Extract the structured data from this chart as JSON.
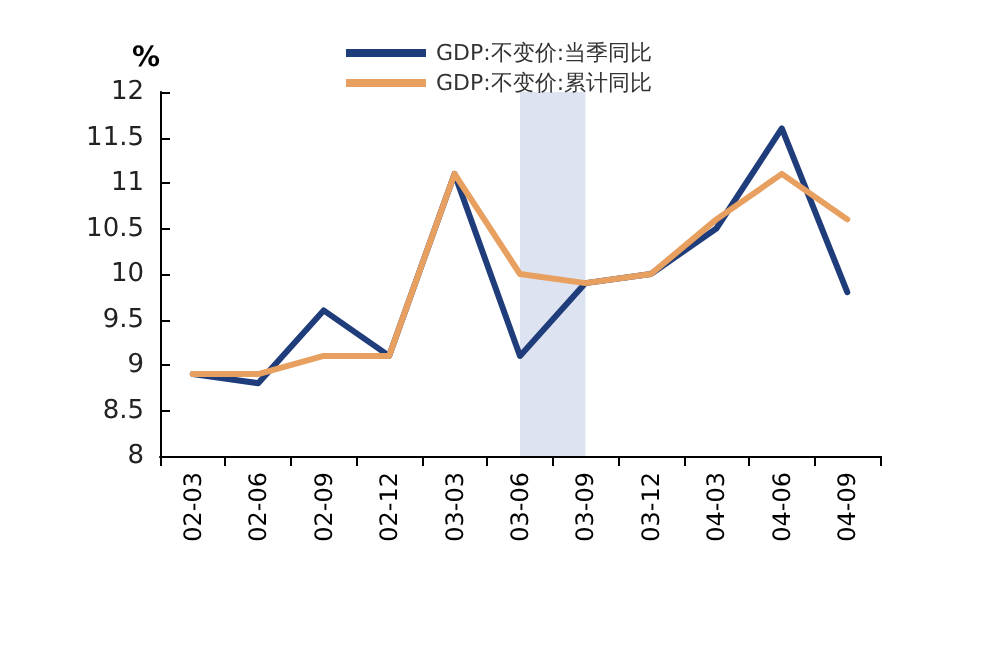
{
  "chart_data": {
    "type": "line",
    "ylabel": "%",
    "categories": [
      "02-03",
      "02-06",
      "02-09",
      "02-12",
      "03-03",
      "03-06",
      "03-09",
      "03-12",
      "04-03",
      "04-06",
      "04-09"
    ],
    "series": [
      {
        "name": "GDP:不变价:当季同比",
        "color": "#1f3d7a",
        "values": [
          8.9,
          8.8,
          9.6,
          9.1,
          11.1,
          9.1,
          9.9,
          10.0,
          10.5,
          11.6,
          9.8
        ]
      },
      {
        "name": "GDP:不变价:累计同比",
        "color": "#e8a060",
        "values": [
          8.9,
          8.9,
          9.1,
          9.1,
          11.1,
          10.0,
          9.9,
          10.0,
          10.6,
          11.1,
          10.6
        ]
      }
    ],
    "ylim": [
      8,
      12
    ],
    "yticks": [
      8,
      8.5,
      9,
      9.5,
      10,
      10.5,
      11,
      11.5,
      12
    ],
    "bands": [
      {
        "axis": "x",
        "from": "03-06",
        "to": "03-09",
        "color": "#dde3f0"
      }
    ],
    "grid": false,
    "legend": "top",
    "marker": "none",
    "line_style": "solid"
  }
}
